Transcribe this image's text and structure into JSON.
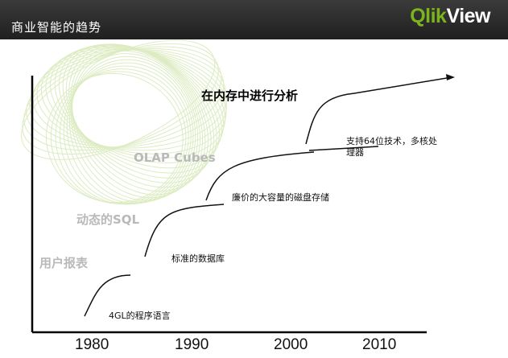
{
  "header": {
    "title": "商业智能的趋势",
    "logo_prefix": "Qlik",
    "logo_suffix": "View",
    "logo_colors": {
      "accent": "#7ab51d",
      "text": "#ffffff"
    }
  },
  "eras": {
    "reports": "用户报表",
    "dynamic_sql": "动态的SQL",
    "olap": "OLAP Cubes",
    "in_memory": "在内存中进行分析"
  },
  "technologies": {
    "fourgl": "4GL的程序语言",
    "standard_db": "标准的数据库",
    "cheap_disk": "廉价的大容量的磁盘存储",
    "multicore_l1": "支持64位技术，多核处",
    "multicore_l2": "理器"
  },
  "timeline": {
    "years": [
      "1980",
      "1990",
      "2000",
      "2010"
    ]
  },
  "colors": {
    "swirl": "#c6df9a",
    "curve": "#111111",
    "era_label": "#b9b9b9"
  }
}
